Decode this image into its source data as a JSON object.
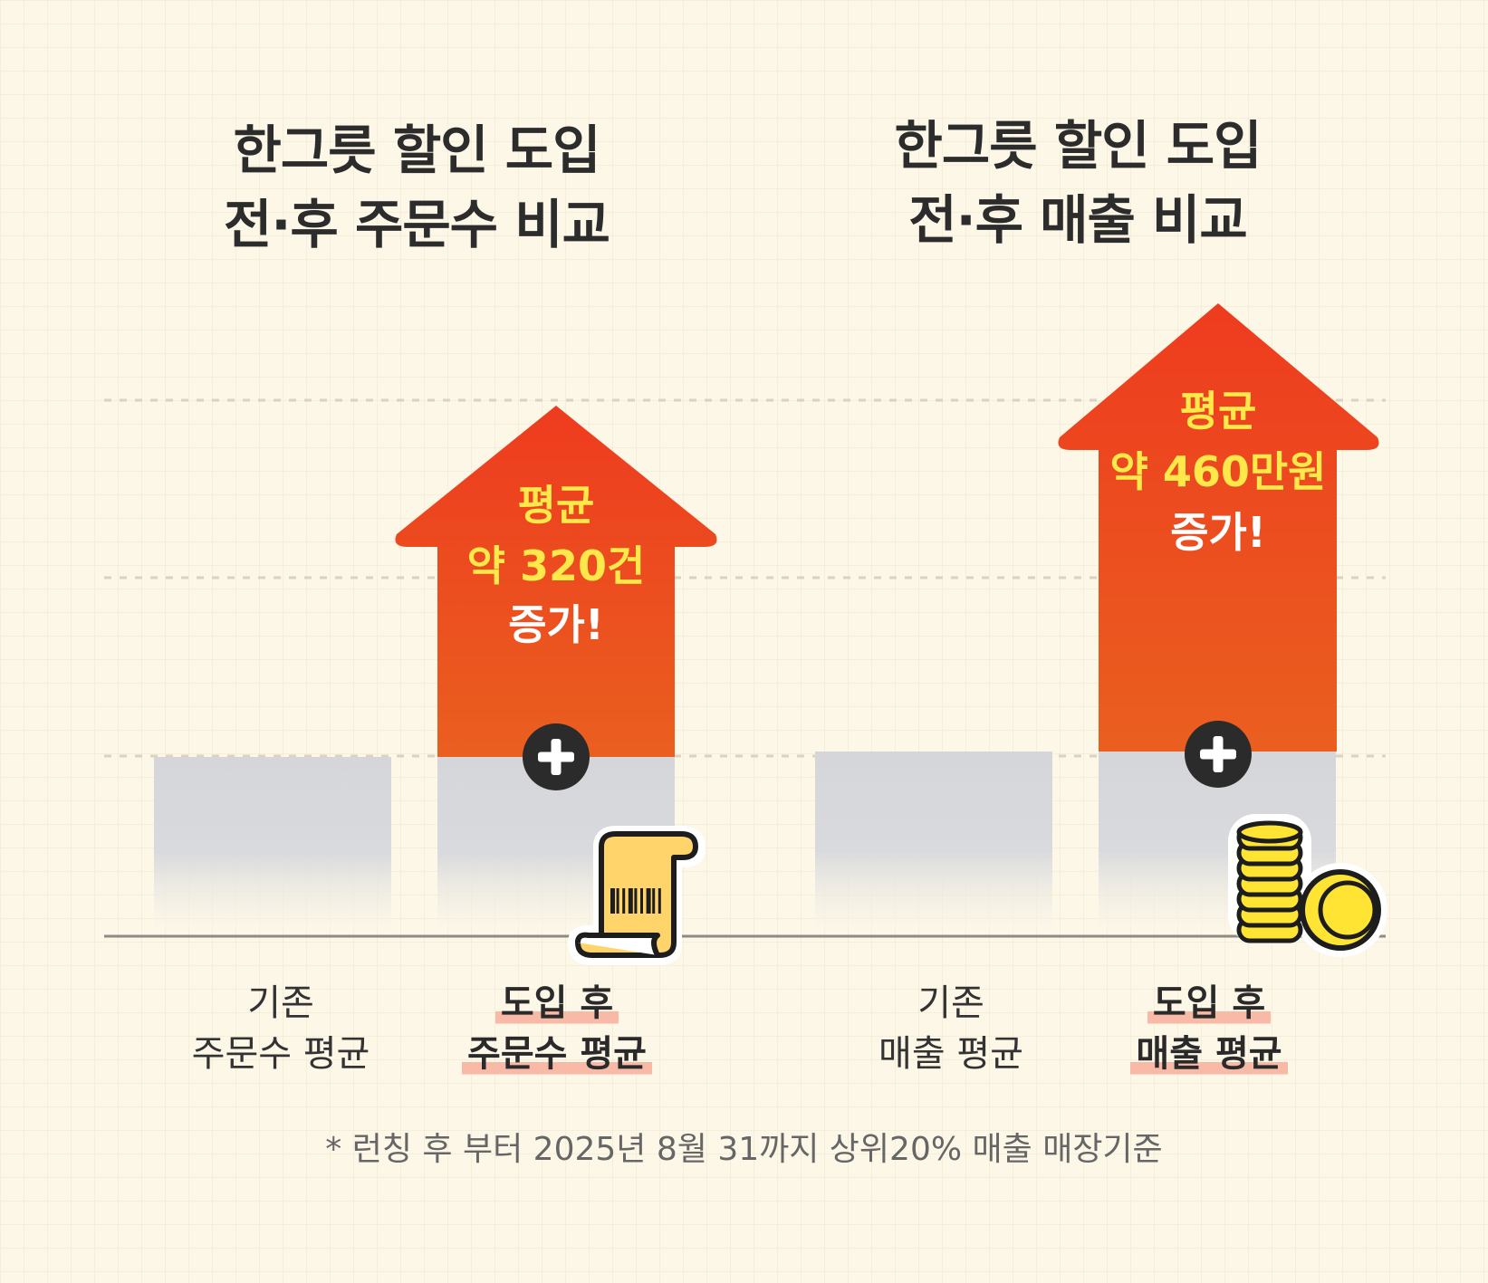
{
  "chart_data": [
    {
      "type": "bar",
      "title_lines": [
        "한그릇 할인 도입",
        "전·후 주문수 비교"
      ],
      "category_lines": [
        [
          "기존",
          "주문수 평균"
        ],
        [
          "도입 후",
          "주문수 평균"
        ]
      ],
      "increase_label_lines": [
        "평균",
        "약 320건",
        "증가!"
      ],
      "increase_value": 320,
      "icon": "receipt-icon"
    },
    {
      "type": "bar",
      "title_lines": [
        "한그릇 할인 도입",
        "전·후 매출 비교"
      ],
      "category_lines": [
        [
          "기존",
          "매출 평균"
        ],
        [
          "도입 후",
          "매출 평균"
        ]
      ],
      "increase_label_lines": [
        "평균",
        "약 460만원",
        "증가!"
      ],
      "increase_value": 4600000,
      "icon": "coins-icon"
    }
  ],
  "footnote": "* 런칭 후 부터 2025년 8월 31까지 상위20% 매출 매장기준",
  "colors": {
    "background": "#fdf7e8",
    "arrow_top": "#ee3b1f",
    "arrow_bottom": "#ea5a1f",
    "bar_gray": "#d5d6da",
    "highlight_text": "#ffe84a",
    "underline": "#f8b9a6"
  }
}
